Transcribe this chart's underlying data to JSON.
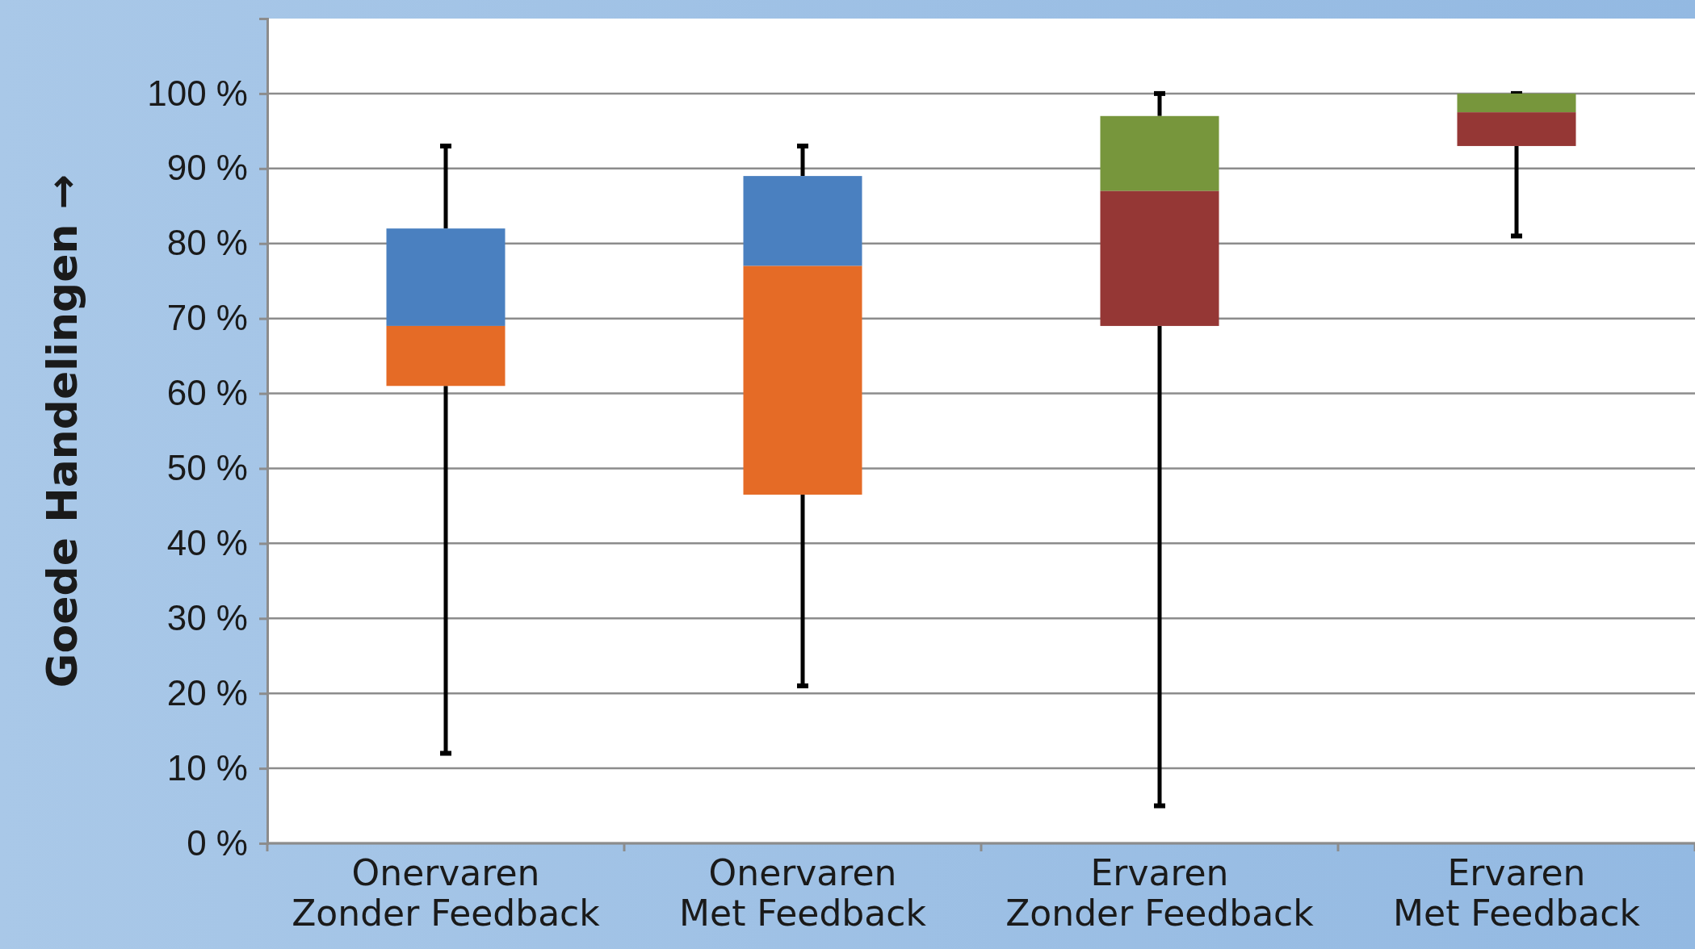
{
  "chart_data": {
    "type": "box",
    "ylabel": "Goede Handelingen →",
    "categories": [
      "Onervaren\nZonder Feedback",
      "Onervaren\nMet Feedback",
      "Ervaren\nZonder Feedback",
      "Ervaren\nMet Feedback"
    ],
    "boxes": [
      {
        "low": 12,
        "q1": 61,
        "median": 69,
        "q3": 82,
        "high": 93
      },
      {
        "low": 21,
        "q1": 46.5,
        "median": 77,
        "q3": 89,
        "high": 93
      },
      {
        "low": 5,
        "q1": 69,
        "median": 87,
        "q3": 97,
        "high": 100
      },
      {
        "low": 81,
        "q1": 93,
        "median": 97.5,
        "q3": 100,
        "high": 100
      }
    ],
    "colors": [
      [
        "#4a80c0",
        "#e56b26"
      ],
      [
        "#4a80c0",
        "#e56b26"
      ],
      [
        "#77963c",
        "#953735"
      ],
      [
        "#77963c",
        "#953735"
      ]
    ],
    "ylim": [
      0,
      110
    ],
    "yticks": [
      {
        "value": 0,
        "label": "0 %"
      },
      {
        "value": 10,
        "label": "10 %"
      },
      {
        "value": 20,
        "label": "20 %"
      },
      {
        "value": 30,
        "label": "30 %"
      },
      {
        "value": 40,
        "label": "40 %"
      },
      {
        "value": 50,
        "label": "50 %"
      },
      {
        "value": 60,
        "label": "60 %"
      },
      {
        "value": 70,
        "label": "70 %"
      },
      {
        "value": 80,
        "label": "80 %"
      },
      {
        "value": 90,
        "label": "90 %"
      },
      {
        "value": 100,
        "label": "100 %"
      }
    ],
    "grid": "y"
  }
}
